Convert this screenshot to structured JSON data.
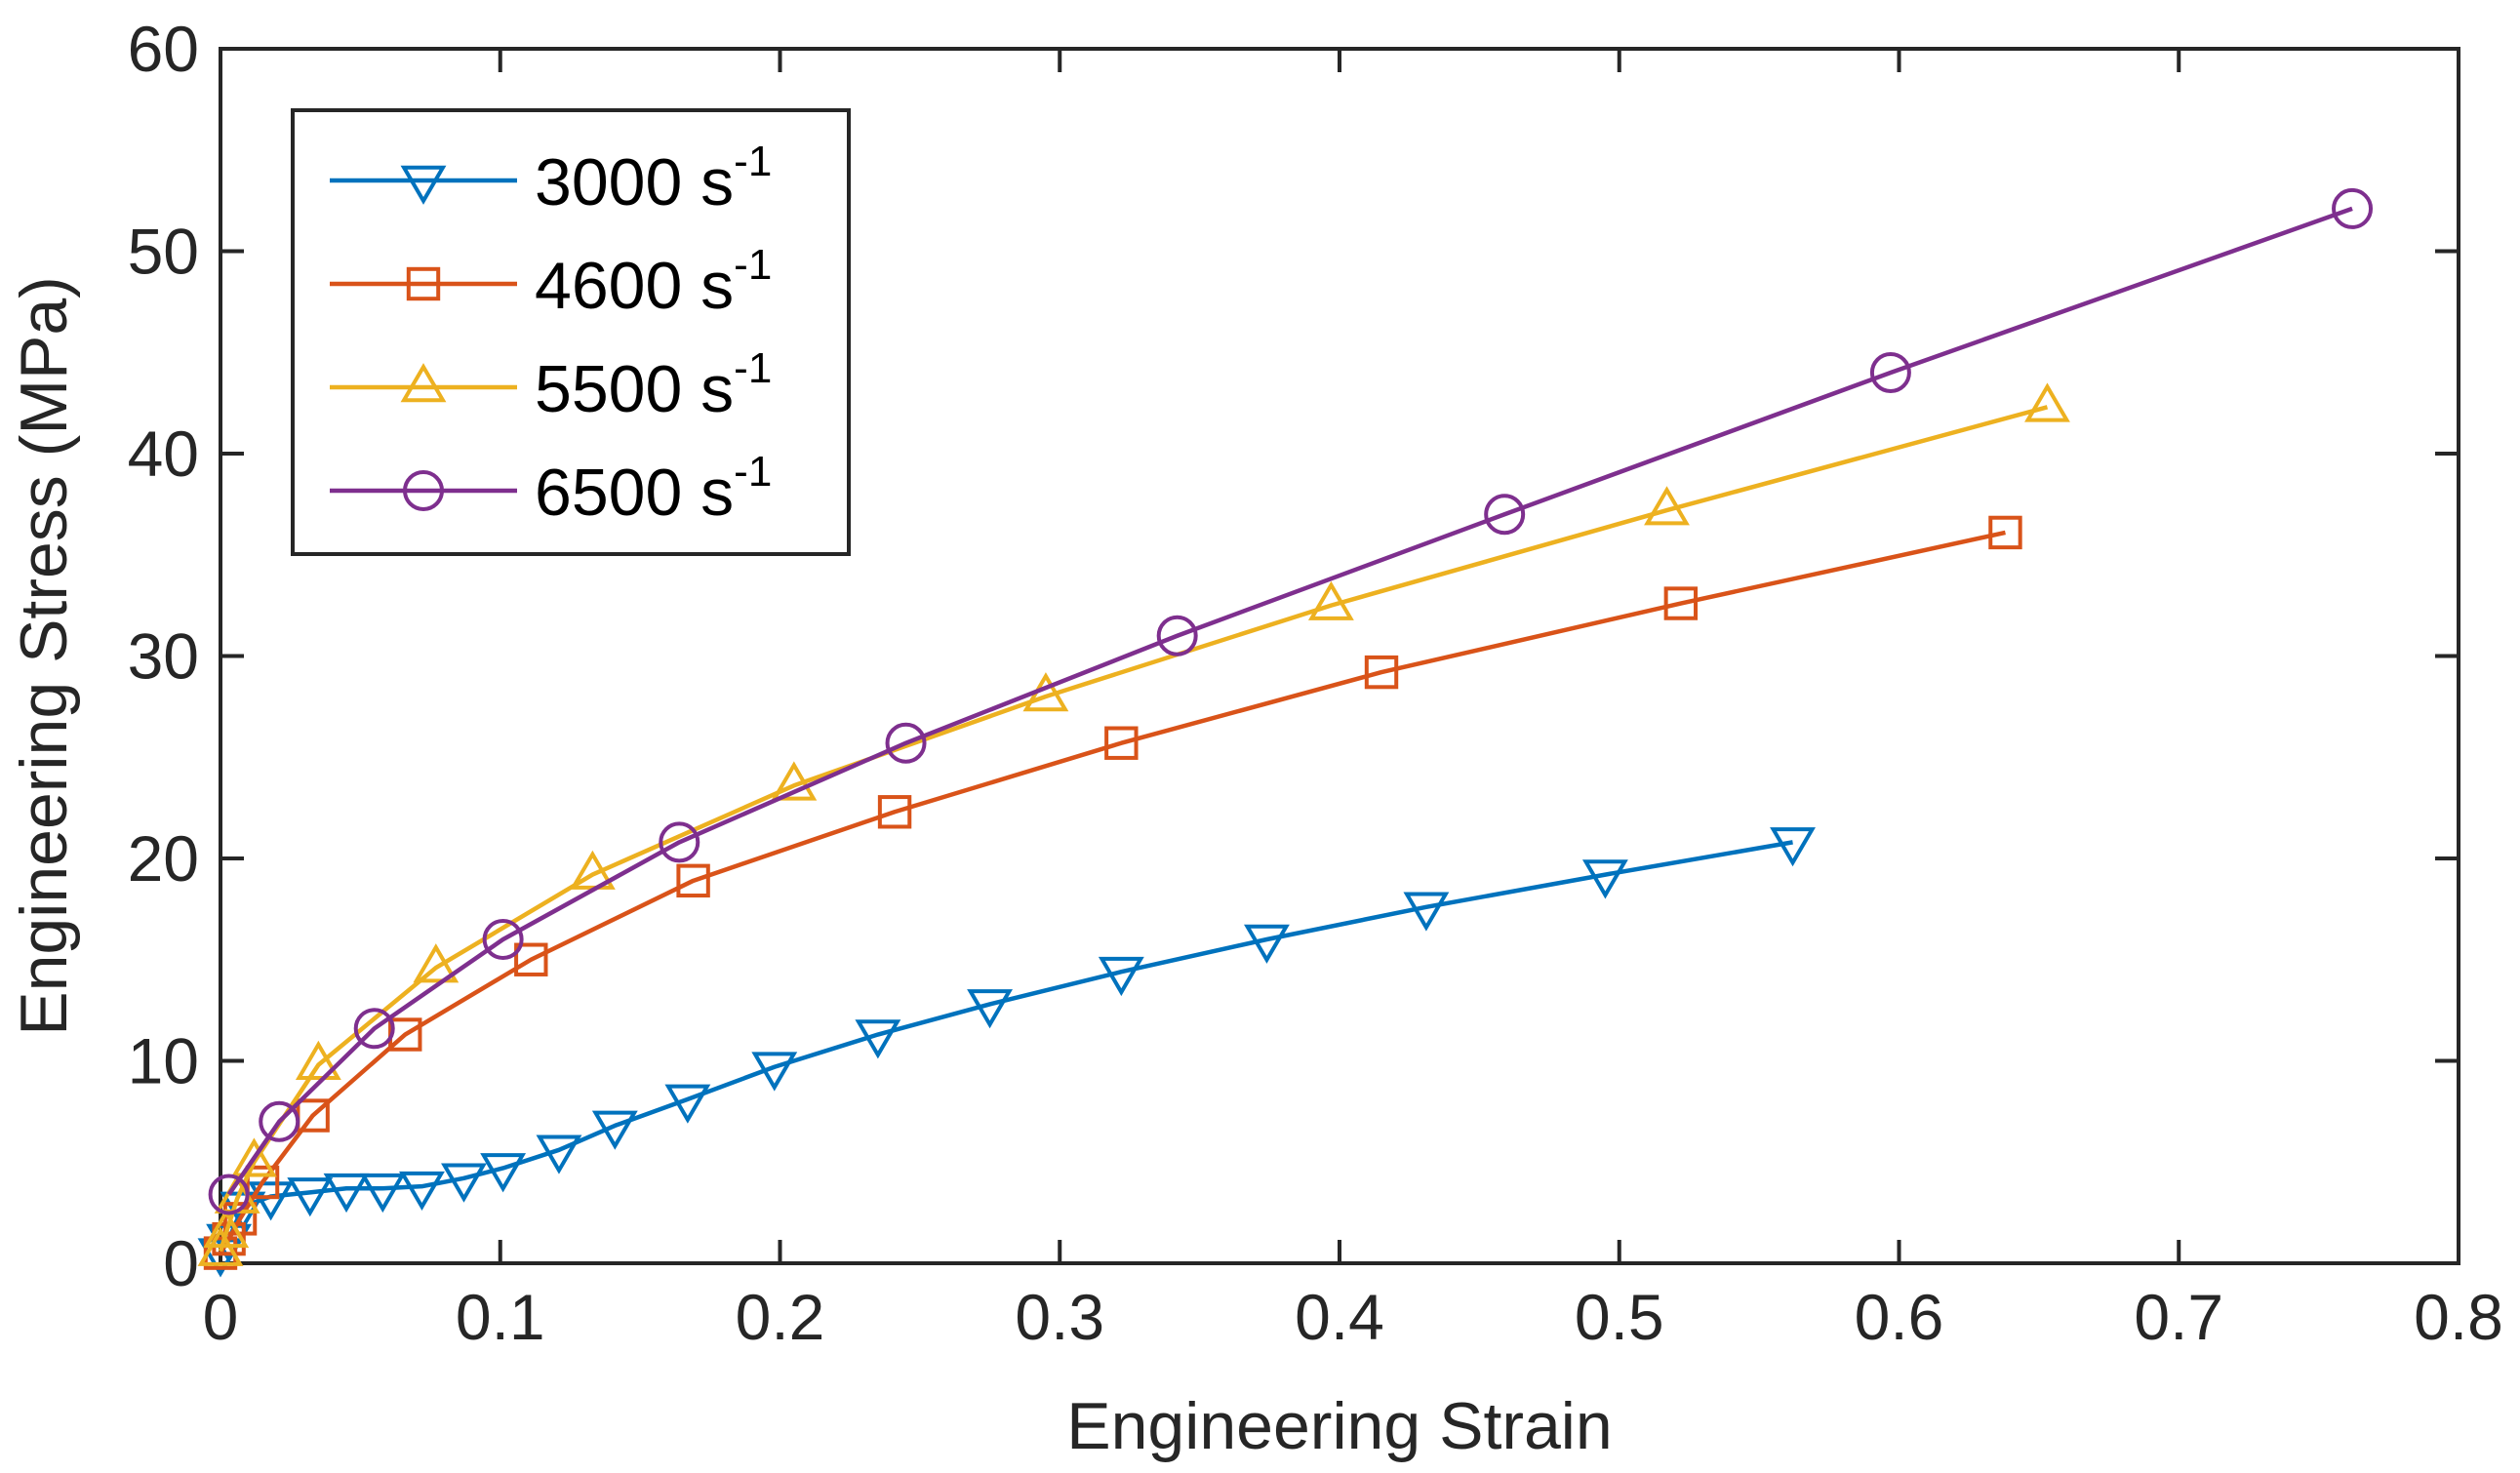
{
  "chart_data": {
    "type": "line",
    "xlabel": "Engineering Strain",
    "ylabel": "Engineering Stress (MPa)",
    "xlim": [
      0,
      0.8
    ],
    "ylim": [
      0,
      60
    ],
    "xticks": [
      "0",
      "0.1",
      "0.2",
      "0.3",
      "0.4",
      "0.5",
      "0.6",
      "0.7",
      "0.8"
    ],
    "yticks": [
      "0",
      "10",
      "20",
      "30",
      "40",
      "50",
      "60"
    ],
    "grid": false,
    "legend_position": "top-left",
    "series": [
      {
        "name": "3000 s",
        "name_sup": "-1",
        "color": "#0072BD",
        "marker": "triangle-down",
        "x": [
          0,
          0.003,
          0.008,
          0.018,
          0.032,
          0.045,
          0.058,
          0.072,
          0.087,
          0.101,
          0.121,
          0.141,
          0.167,
          0.198,
          0.235,
          0.275,
          0.322,
          0.374,
          0.431,
          0.495,
          0.562
        ],
        "y": [
          0.5,
          1.2,
          2.8,
          3.3,
          3.5,
          3.7,
          3.7,
          3.8,
          4.2,
          4.7,
          5.6,
          6.8,
          8.1,
          9.7,
          11.3,
          12.8,
          14.4,
          16.0,
          17.6,
          19.2,
          20.8
        ]
      },
      {
        "name": "4600 s",
        "name_sup": "-1",
        "color": "#D95319",
        "marker": "square",
        "x": [
          0,
          0.003,
          0.007,
          0.015,
          0.033,
          0.066,
          0.111,
          0.169,
          0.241,
          0.322,
          0.415,
          0.522,
          0.638
        ],
        "y": [
          0.5,
          1.2,
          2.2,
          4.0,
          7.3,
          11.3,
          15.0,
          18.9,
          22.3,
          25.7,
          29.2,
          32.6,
          36.1
        ]
      },
      {
        "name": "5500 s",
        "name_sup": "-1",
        "color": "#EDB120",
        "marker": "triangle-up",
        "x": [
          0,
          0.002,
          0.006,
          0.012,
          0.035,
          0.077,
          0.133,
          0.205,
          0.295,
          0.397,
          0.517,
          0.653
        ],
        "y": [
          0.6,
          1.5,
          3.2,
          5.0,
          9.8,
          14.6,
          19.2,
          23.6,
          28.0,
          32.5,
          37.2,
          42.3
        ]
      },
      {
        "name": "6500 s",
        "name_sup": "-1",
        "color": "#7E2F8E",
        "marker": "circle",
        "x": [
          0.003,
          0.021,
          0.055,
          0.101,
          0.164,
          0.245,
          0.342,
          0.459,
          0.597,
          0.762
        ],
        "y": [
          3.4,
          7.0,
          11.6,
          16.0,
          20.8,
          25.7,
          31.0,
          37.0,
          44.0,
          52.1
        ]
      }
    ]
  }
}
